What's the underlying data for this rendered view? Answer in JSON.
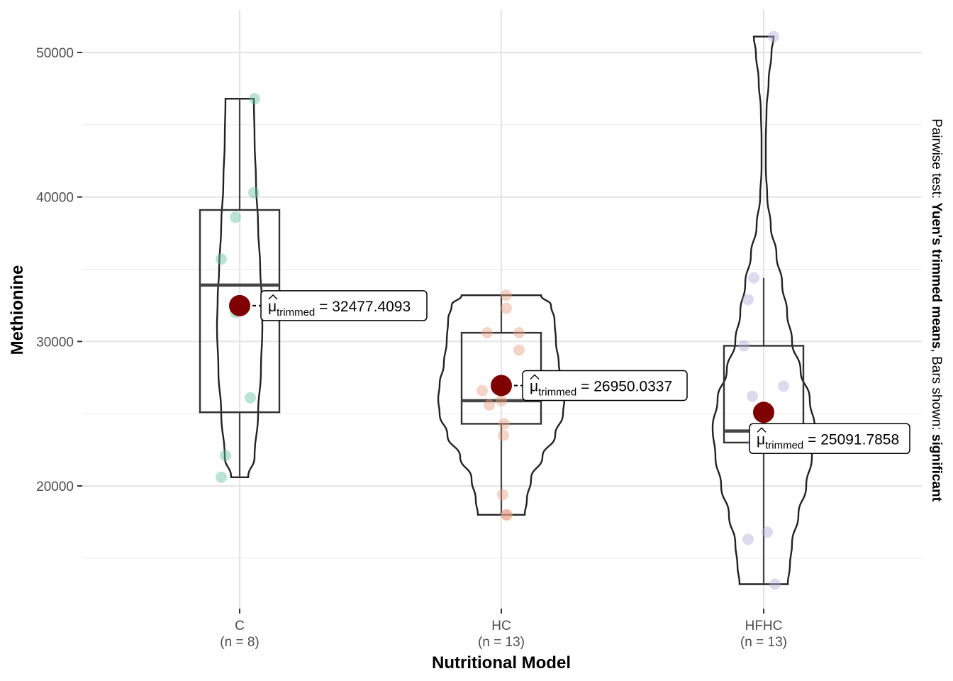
{
  "chart_data": {
    "type": "violin-box-scatter",
    "xlabel": "Nutritional Model",
    "ylabel": "Methionine",
    "ylim": [
      11500,
      53000
    ],
    "yticks": [
      20000,
      30000,
      40000,
      50000
    ],
    "yticks_labels": [
      "20000",
      "30000",
      "40000",
      "50000"
    ],
    "grid": true,
    "side_note": {
      "prefix": "Pairwise test: ",
      "test": "Yuen's trimmed means",
      "middle": ", Bars shown: ",
      "bars": "significant"
    },
    "groups": [
      {
        "name": "C",
        "n_label": "(n = 8)",
        "color": "#66c2a5",
        "points": [
          46800,
          40300,
          38600,
          35700,
          32000,
          26100,
          22100,
          20600
        ],
        "box": {
          "q1": 25100,
          "median": 33900,
          "q3": 39100,
          "lower": 20600,
          "upper": 46800
        },
        "trimmed_mean": 32477.4093,
        "mean_label": "32477.4093",
        "violin": [
          [
            20600,
            12
          ],
          [
            22000,
            21
          ],
          [
            25000,
            26
          ],
          [
            28000,
            30
          ],
          [
            31000,
            32
          ],
          [
            33000,
            31
          ],
          [
            35000,
            29
          ],
          [
            38000,
            26
          ],
          [
            41000,
            23
          ],
          [
            44000,
            21
          ],
          [
            46800,
            20
          ]
        ]
      },
      {
        "name": "HC",
        "n_label": "(n = 13)",
        "color": "#e9a084",
        "points": [
          33200,
          32300,
          30600,
          30600,
          29400,
          26600,
          25900,
          25600,
          24300,
          23500,
          19400,
          18000,
          18000
        ],
        "box": {
          "q1": 24300,
          "median": 25900,
          "q3": 30600,
          "lower": 18000,
          "upper": 33200
        },
        "trimmed_mean": 26950.0337,
        "mean_label": "26950.0337",
        "violin": [
          [
            18000,
            33
          ],
          [
            19000,
            36
          ],
          [
            20500,
            42
          ],
          [
            22000,
            58
          ],
          [
            23500,
            76
          ],
          [
            25000,
            87
          ],
          [
            26000,
            89
          ],
          [
            27000,
            87
          ],
          [
            28500,
            81
          ],
          [
            30000,
            77
          ],
          [
            31500,
            75
          ],
          [
            32500,
            70
          ],
          [
            33200,
            56
          ]
        ]
      },
      {
        "name": "HFHC",
        "n_label": "(n = 13)",
        "color": "#b3acd6",
        "points": [
          51100,
          34400,
          32900,
          29700,
          26900,
          26200,
          23800,
          23200,
          23000,
          23000,
          16800,
          16300,
          13200
        ],
        "box": {
          "q1": 23000,
          "median": 23800,
          "q3": 29700,
          "lower": 13200,
          "upper": 34400
        },
        "trimmed_mean": 25091.7858,
        "mean_label": "25091.7858",
        "violin": [
          [
            13200,
            34
          ],
          [
            14500,
            37
          ],
          [
            16000,
            40
          ],
          [
            18000,
            49
          ],
          [
            20000,
            60
          ],
          [
            22000,
            68
          ],
          [
            24000,
            72
          ],
          [
            26000,
            65
          ],
          [
            28000,
            52
          ],
          [
            30000,
            40
          ],
          [
            32000,
            33
          ],
          [
            34000,
            26
          ],
          [
            36000,
            18
          ],
          [
            38000,
            10
          ],
          [
            40000,
            5
          ],
          [
            42000,
            3
          ],
          [
            44000,
            3
          ],
          [
            46000,
            4
          ],
          [
            48000,
            7
          ],
          [
            50000,
            11
          ],
          [
            51100,
            14
          ]
        ]
      }
    ]
  }
}
